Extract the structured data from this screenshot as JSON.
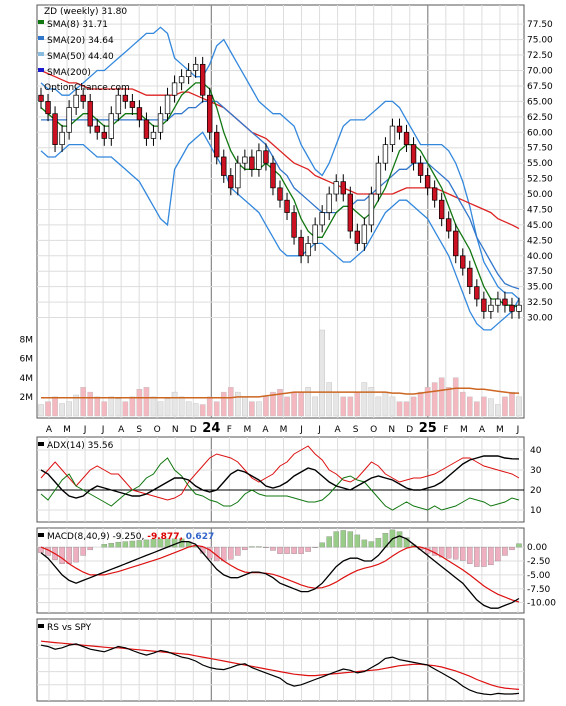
{
  "chart_data": {
    "type": "line",
    "ticker": "ZD",
    "period": "(weekly)",
    "last_close": "31.80",
    "watermark": "OptionChance.com",
    "x_month_labels": [
      "A",
      "M",
      "J",
      "J",
      "A",
      "S",
      "O",
      "N",
      "D",
      "24",
      "F",
      "M",
      "A",
      "M",
      "J",
      "J",
      "A",
      "S",
      "O",
      "N",
      "D",
      "25",
      "F",
      "M",
      "A",
      "M",
      "J"
    ],
    "price_panel": {
      "ylim": [
        27.5,
        78.5
      ],
      "y_ticks": [
        "77.50",
        "75.00",
        "72.50",
        "70.00",
        "67.50",
        "65.00",
        "62.50",
        "60.00",
        "57.50",
        "55.00",
        "52.50",
        "50.00",
        "47.50",
        "45.00",
        "42.50",
        "40.00",
        "37.50",
        "35.00",
        "32.50",
        "30.00"
      ],
      "legend": [
        {
          "label": "SMA(8)",
          "value": "31.71",
          "color": "#117711"
        },
        {
          "label": "SMA(20)",
          "value": "34.64",
          "color": "#3377cc"
        },
        {
          "label": "SMA(50)",
          "value": "44.40",
          "color": "#dd2222"
        },
        {
          "label": "SMA(200)",
          "value": "",
          "color": "#1a1acc"
        }
      ],
      "close": [
        65,
        63,
        58,
        60,
        64,
        66,
        65,
        61,
        60,
        59,
        63,
        66,
        65,
        64,
        62,
        59,
        60,
        63,
        66,
        68,
        69,
        70,
        71,
        66,
        60,
        56,
        53,
        51,
        55,
        56,
        54,
        57,
        55,
        51,
        49,
        47,
        43,
        40,
        42,
        45,
        47,
        50,
        52,
        50,
        44,
        42,
        45,
        50,
        55,
        58,
        61,
        60,
        58,
        55,
        53,
        51,
        49,
        46,
        44,
        40,
        38,
        35,
        33,
        31,
        32,
        33,
        32,
        31,
        32
      ],
      "sma8": [
        64,
        63,
        62,
        61,
        61,
        62,
        63,
        63,
        62,
        61,
        61,
        62,
        63,
        63,
        63,
        62,
        61,
        61,
        62,
        64,
        66,
        67,
        68,
        68,
        67,
        64,
        60,
        57,
        55,
        54,
        54,
        54,
        55,
        54,
        53,
        51,
        49,
        46,
        44,
        43,
        43,
        45,
        47,
        48,
        48,
        47,
        46,
        47,
        49,
        51,
        54,
        57,
        58,
        58,
        57,
        55,
        53,
        51,
        48,
        45,
        43,
        41,
        38,
        35,
        33,
        33,
        32,
        32,
        31.7
      ],
      "sma20": [
        62,
        62,
        62,
        62,
        62,
        62,
        62,
        62,
        62,
        62,
        62,
        62,
        62,
        62,
        62,
        62,
        62,
        62,
        62,
        63,
        63,
        64,
        64,
        65,
        65,
        65,
        64,
        63,
        62,
        61,
        60,
        59,
        58,
        56,
        54,
        53,
        51,
        50,
        49,
        48,
        47,
        47,
        47,
        48,
        48,
        49,
        49,
        50,
        51,
        52,
        53,
        54,
        54,
        55,
        55,
        55,
        54,
        53,
        52,
        50,
        48,
        46,
        43,
        41,
        39,
        37,
        35.5,
        35,
        34.64
      ],
      "sma50": [
        70,
        69.5,
        69,
        68.5,
        68,
        68,
        67.5,
        67,
        67,
        67,
        67,
        67,
        67,
        67,
        66.5,
        66,
        66,
        66,
        66,
        66,
        66.5,
        66.5,
        66,
        65.5,
        65,
        64.5,
        64,
        63,
        62,
        61,
        60,
        59.5,
        59,
        58,
        57,
        56,
        55,
        54.5,
        54,
        53,
        52.5,
        52,
        51.5,
        51,
        50.5,
        50,
        50,
        50,
        50,
        50,
        50,
        50.5,
        51,
        51,
        51,
        51,
        51,
        50.5,
        50,
        49.5,
        49,
        48.5,
        48,
        47.5,
        47,
        46,
        45.5,
        45,
        44.4
      ],
      "bb_upper": [
        68,
        67,
        67,
        66,
        66,
        67,
        68,
        69,
        70,
        70,
        71,
        72,
        73,
        74,
        75,
        76,
        76,
        77,
        76,
        72,
        71,
        70,
        69,
        69,
        71,
        74,
        75,
        73,
        71,
        69,
        67,
        65,
        64,
        63,
        63,
        62,
        61,
        58,
        56,
        54,
        53,
        55,
        58,
        61,
        62,
        62,
        62,
        63,
        64,
        65,
        65,
        64,
        62,
        60,
        58,
        58,
        58,
        58,
        57,
        55,
        52,
        48,
        43,
        39,
        37,
        35,
        34,
        34,
        33
      ],
      "bb_lower": [
        57,
        56,
        56,
        57,
        58,
        58,
        58,
        57,
        56,
        56,
        56,
        55,
        54,
        53,
        52,
        50,
        48,
        46,
        45,
        54,
        56,
        58,
        59,
        60,
        58,
        56,
        54,
        51,
        50,
        49,
        48,
        47,
        45,
        43,
        41,
        40,
        40,
        40,
        41,
        42,
        42,
        41,
        40,
        39,
        39,
        40,
        41,
        43,
        45,
        47,
        48,
        49,
        49,
        48,
        47,
        46,
        44,
        42,
        40,
        37,
        34,
        31,
        29,
        28,
        28,
        29,
        30,
        31,
        33
      ]
    },
    "volume_panel": {
      "y_ticks": [
        "8M",
        "6M",
        "4M",
        "2M"
      ],
      "ylim_millions": [
        0,
        9
      ],
      "volume_millions": [
        1.2,
        1.5,
        2,
        1.3,
        1.5,
        2.2,
        3,
        2.5,
        2,
        1.5,
        2,
        1.8,
        1.5,
        2,
        2.8,
        3,
        2,
        1.5,
        1.8,
        2.5,
        2,
        1.5,
        1.3,
        1.2,
        2,
        1.5,
        2.5,
        3,
        2.5,
        2,
        1.5,
        1.5,
        2,
        2.5,
        2.8,
        2,
        2.5,
        2.5,
        3,
        2,
        9,
        3.5,
        2.5,
        2,
        2,
        2.5,
        3.5,
        3,
        2,
        2.5,
        2,
        1.5,
        1.5,
        2,
        2.5,
        3,
        3.5,
        4,
        3,
        4,
        2.5,
        2,
        1.5,
        2,
        1.8,
        1.2,
        2,
        2.5,
        2
      ],
      "volume_avg_millions": [
        1.9,
        1.9,
        1.9,
        1.9,
        1.9,
        1.9,
        1.9,
        1.9,
        1.9,
        1.9,
        1.9,
        1.9,
        1.9,
        1.9,
        1.9,
        1.9,
        1.9,
        1.9,
        1.9,
        1.9,
        1.9,
        1.9,
        1.9,
        1.9,
        1.9,
        1.9,
        1.9,
        1.9,
        2,
        2,
        2,
        2,
        2.1,
        2.2,
        2.3,
        2.4,
        2.5,
        2.5,
        2.5,
        2.5,
        2.5,
        2.5,
        2.5,
        2.5,
        2.5,
        2.5,
        2.5,
        2.5,
        2.5,
        2.5,
        2.4,
        2.4,
        2.3,
        2.3,
        2.4,
        2.5,
        2.6,
        2.7,
        2.8,
        2.9,
        2.9,
        2.9,
        2.8,
        2.8,
        2.7,
        2.6,
        2.5,
        2.4,
        2.4
      ]
    },
    "adx_panel": {
      "label": "ADX(14) 35.56",
      "ylim": [
        5,
        45
      ],
      "y_ticks": [
        "40",
        "30",
        "20",
        "10"
      ],
      "adx": [
        30,
        28,
        24,
        20,
        17,
        16,
        17,
        20,
        22,
        21,
        20,
        19,
        18,
        17,
        17,
        18,
        20,
        22,
        24,
        26,
        26,
        25,
        22,
        20,
        19,
        20,
        24,
        28,
        30,
        29,
        27,
        25,
        22,
        21,
        22,
        24,
        27,
        29,
        31,
        30,
        27,
        24,
        22,
        21,
        20,
        22,
        24,
        26,
        27,
        26,
        25,
        23,
        21,
        20,
        20,
        21,
        22,
        24,
        27,
        30,
        33,
        35,
        36,
        37,
        37,
        37,
        36,
        35.6,
        35.56
      ],
      "plus_di": [
        18,
        15,
        20,
        25,
        28,
        22,
        20,
        18,
        16,
        14,
        12,
        15,
        18,
        20,
        22,
        26,
        28,
        33,
        36,
        30,
        27,
        22,
        18,
        17,
        15,
        14,
        12,
        12,
        14,
        18,
        20,
        18,
        17,
        17,
        17,
        17,
        16,
        15,
        14,
        14,
        15,
        18,
        22,
        26,
        27,
        25,
        24,
        20,
        16,
        12,
        10,
        12,
        14,
        12,
        11,
        10,
        12,
        10,
        11,
        12,
        14,
        16,
        15,
        14,
        12,
        13,
        14,
        16,
        15
      ],
      "minus_di": [
        26,
        30,
        34,
        30,
        26,
        22,
        26,
        30,
        32,
        30,
        28,
        28,
        24,
        20,
        19,
        18,
        17,
        16,
        15,
        16,
        18,
        24,
        28,
        32,
        36,
        38,
        37,
        36,
        34,
        30,
        26,
        24,
        26,
        28,
        32,
        34,
        38,
        40,
        42,
        38,
        35,
        30,
        28,
        25,
        24,
        26,
        30,
        34,
        32,
        28,
        26,
        24,
        25,
        26,
        26,
        27,
        28,
        30,
        32,
        34,
        36,
        36,
        34,
        32,
        31,
        30,
        29,
        28,
        26
      ]
    },
    "macd_panel": {
      "label": "MACD(8,40,9) -9.250,",
      "signal_value": "-9.877,",
      "histogram_value": "0.627",
      "ylim": [
        -11.5,
        2
      ],
      "y_ticks": [
        "0.00",
        "-2.50",
        "-5.00",
        "-7.50",
        "-10.00"
      ],
      "macd": [
        -1,
        -2,
        -3.5,
        -5,
        -6,
        -6.5,
        -6,
        -5.5,
        -5,
        -4.5,
        -4,
        -3.5,
        -3,
        -2.5,
        -2,
        -1.5,
        -1,
        -0.5,
        0,
        0.5,
        1,
        1,
        0.5,
        -1,
        -2.5,
        -4,
        -5,
        -5.5,
        -5.5,
        -5,
        -4.5,
        -4.5,
        -4.8,
        -5.5,
        -6.5,
        -7,
        -7.5,
        -8,
        -8,
        -7.5,
        -6.5,
        -5,
        -3.5,
        -2.5,
        -2,
        -2,
        -2.5,
        -2.5,
        -1.5,
        0,
        1.5,
        2,
        1.5,
        0.5,
        -0.5,
        -1.5,
        -2.5,
        -3.5,
        -4.5,
        -5.5,
        -6.5,
        -8,
        -9.5,
        -10.5,
        -11,
        -11,
        -10.5,
        -10,
        -9.25
      ],
      "signal": [
        0,
        -0.5,
        -1.2,
        -2,
        -3,
        -3.8,
        -4.5,
        -5,
        -5,
        -5,
        -4.7,
        -4.4,
        -4,
        -3.6,
        -3.2,
        -2.8,
        -2.4,
        -2,
        -1.5,
        -1,
        -0.5,
        0,
        0.3,
        0.1,
        -0.5,
        -1.5,
        -2.5,
        -3.3,
        -4,
        -4.5,
        -4.6,
        -4.6,
        -4.7,
        -4.9,
        -5.3,
        -5.8,
        -6.3,
        -6.8,
        -7.2,
        -7.4,
        -7.3,
        -6.9,
        -6.3,
        -5.5,
        -4.8,
        -4.2,
        -3.8,
        -3.5,
        -3.1,
        -2.5,
        -1.6,
        -0.8,
        -0.2,
        0.1,
        0,
        -0.4,
        -1,
        -1.7,
        -2.5,
        -3.3,
        -4.1,
        -5,
        -6,
        -7,
        -7.8,
        -8.5,
        -9,
        -9.5,
        -9.877
      ]
    },
    "rs_panel": {
      "label": "RS vs SPY",
      "rs": [
        0.8,
        0.78,
        0.74,
        0.76,
        0.8,
        0.82,
        0.78,
        0.74,
        0.72,
        0.7,
        0.74,
        0.78,
        0.76,
        0.72,
        0.68,
        0.65,
        0.68,
        0.72,
        0.7,
        0.66,
        0.62,
        0.6,
        0.56,
        0.5,
        0.46,
        0.44,
        0.43,
        0.46,
        0.5,
        0.52,
        0.46,
        0.42,
        0.38,
        0.34,
        0.3,
        0.22,
        0.18,
        0.2,
        0.24,
        0.28,
        0.32,
        0.36,
        0.4,
        0.44,
        0.42,
        0.38,
        0.4,
        0.46,
        0.52,
        0.6,
        0.62,
        0.58,
        0.56,
        0.54,
        0.52,
        0.5,
        0.44,
        0.38,
        0.32,
        0.26,
        0.18,
        0.12,
        0.08,
        0.06,
        0.05,
        0.07,
        0.06,
        0.06,
        0.07
      ],
      "rs_ma": [
        0.86,
        0.85,
        0.84,
        0.83,
        0.82,
        0.81,
        0.8,
        0.79,
        0.78,
        0.77,
        0.76,
        0.76,
        0.75,
        0.74,
        0.73,
        0.72,
        0.71,
        0.7,
        0.69,
        0.68,
        0.67,
        0.66,
        0.64,
        0.62,
        0.6,
        0.58,
        0.56,
        0.54,
        0.52,
        0.5,
        0.48,
        0.46,
        0.44,
        0.42,
        0.4,
        0.38,
        0.36,
        0.35,
        0.34,
        0.34,
        0.35,
        0.36,
        0.37,
        0.38,
        0.39,
        0.4,
        0.41,
        0.42,
        0.43,
        0.45,
        0.47,
        0.49,
        0.5,
        0.51,
        0.51,
        0.5,
        0.49,
        0.47,
        0.44,
        0.41,
        0.37,
        0.33,
        0.28,
        0.24,
        0.2,
        0.17,
        0.15,
        0.14,
        0.13
      ]
    }
  }
}
